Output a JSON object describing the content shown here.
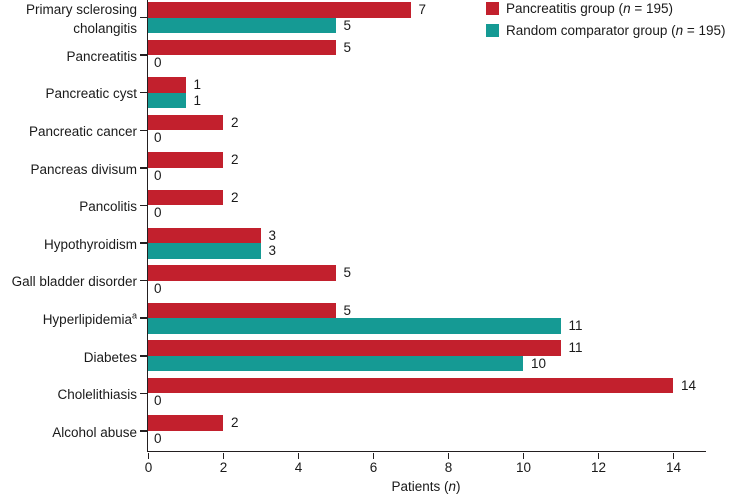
{
  "figure": {
    "xlabel_parts": {
      "prefix": "Patients (",
      "italic": "n",
      "suffix": ")"
    }
  },
  "legend": {
    "items": [
      {
        "name": "Pancreatitis group",
        "n_label": "n",
        "n_value": "195",
        "color": "#c2202d"
      },
      {
        "name": "Random comparator group",
        "n_label": "n",
        "n_value": "195",
        "color": "#159a94"
      }
    ]
  },
  "chart_data": {
    "type": "bar",
    "orientation": "horizontal",
    "title": "",
    "xlabel": "Patients (n)",
    "ylabel": "",
    "categories": [
      "Primary sclerosing cholangitis",
      "Pancreatitis",
      "Pancreatic cyst",
      "Pancreatic cancer",
      "Pancreas divisum",
      "Pancolitis",
      "Hypothyroidism",
      "Gall bladder disorder",
      "Hyperlipidemia",
      "Diabetes",
      "Cholelithiasis",
      "Alcohol abuse"
    ],
    "category_superscripts": [
      "",
      "",
      "",
      "",
      "",
      "",
      "",
      "",
      "a",
      "",
      "",
      ""
    ],
    "series": [
      {
        "name": "Pancreatitis group (n = 195)",
        "color": "#c2202d",
        "values": [
          7,
          5,
          1,
          2,
          2,
          2,
          3,
          5,
          5,
          11,
          14,
          2
        ]
      },
      {
        "name": "Random comparator group (n = 195)",
        "color": "#159a94",
        "values": [
          5,
          0,
          1,
          0,
          0,
          0,
          3,
          0,
          11,
          10,
          0,
          0
        ]
      }
    ],
    "xlim": [
      0,
      14.9
    ],
    "xticks": [
      0,
      2,
      4,
      6,
      8,
      10,
      12,
      14
    ],
    "grid": false,
    "bar_value_labels": true,
    "legend_position": "top-right"
  }
}
